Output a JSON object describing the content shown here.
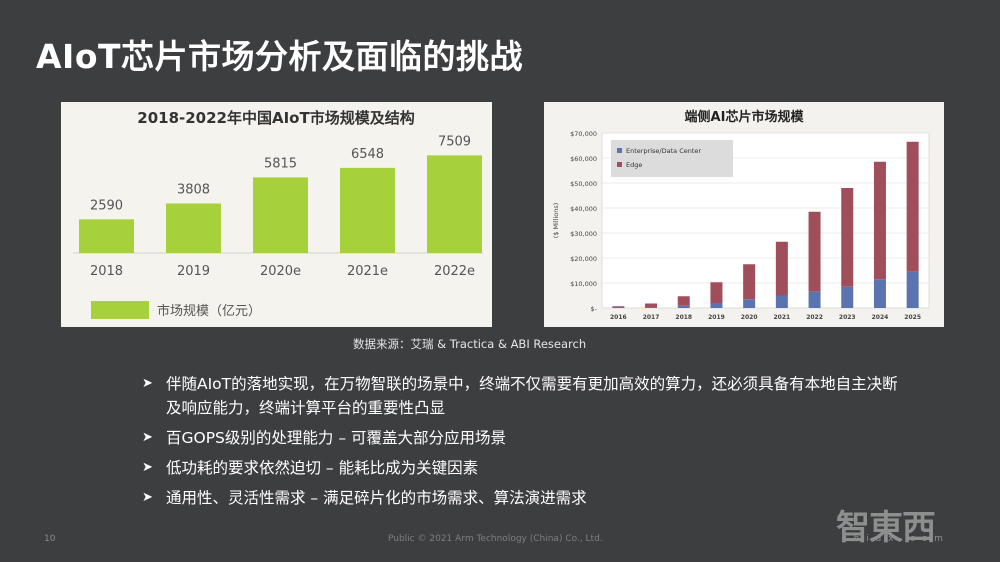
{
  "slide": {
    "title": "AIoT芯片市场分析及面临的挑战",
    "source": "数据来源：艾瑞 & Tractica & ABI Research",
    "page_number": "10",
    "copyright": "Public © 2021 Arm Technology (China) Co., Ltd.",
    "watermark_logo": "智東西",
    "watermark_sub": "z h i d x . c o m"
  },
  "bullets": [
    "伴随AIoT的落地实现，在万物智联的场景中，终端不仅需要有更加高效的算力，还必须具备有本地自主决断及响应能力，终端计算平台的重要性凸显",
    "百GOPS级别的处理能力 – 可覆盖大部分应用场景",
    "低功耗的要求依然迫切 – 能耗比成为关键因素",
    "通用性、灵活性需求 – 满足碎片化的市场需求、算法演进需求"
  ],
  "colors": {
    "green_bar": "#a6d13a",
    "enterprise": "#5b74b0",
    "edge": "#a04e5a"
  },
  "chart_data": [
    {
      "type": "bar",
      "title": "2018-2022年中国AIoT市场规模及结构",
      "categories": [
        "2018",
        "2019",
        "2020e",
        "2021e",
        "2022e"
      ],
      "series": [
        {
          "name": "市场规模（亿元）",
          "values": [
            2590,
            3808,
            5815,
            6548,
            7509
          ]
        }
      ],
      "value_labels": [
        "2590",
        "3808",
        "5815",
        "6548",
        "7509"
      ],
      "ylim": [
        0,
        8000
      ],
      "legend": "bottom-left",
      "grid": false
    },
    {
      "type": "bar",
      "stacked": true,
      "title": "端侧AI芯片市场规模",
      "categories": [
        "2016",
        "2017",
        "2018",
        "2019",
        "2020",
        "2021",
        "2022",
        "2023",
        "2024",
        "2025"
      ],
      "series": [
        {
          "name": "Enterprise/Data Center",
          "values": [
            200,
            400,
            900,
            2000,
            3500,
            5000,
            6500,
            8500,
            11500,
            14500
          ]
        },
        {
          "name": "Edge",
          "values": [
            500,
            1400,
            3800,
            8300,
            14000,
            21500,
            32000,
            39500,
            47000,
            52000
          ]
        }
      ],
      "ylabel": "($ Millions)",
      "yticks": [
        "$-",
        "$10,000",
        "$20,000",
        "$30,000",
        "$40,000",
        "$50,000",
        "$60,000",
        "$70,000"
      ],
      "ylim": [
        0,
        70000
      ],
      "legend": "top-left",
      "grid": true
    }
  ]
}
